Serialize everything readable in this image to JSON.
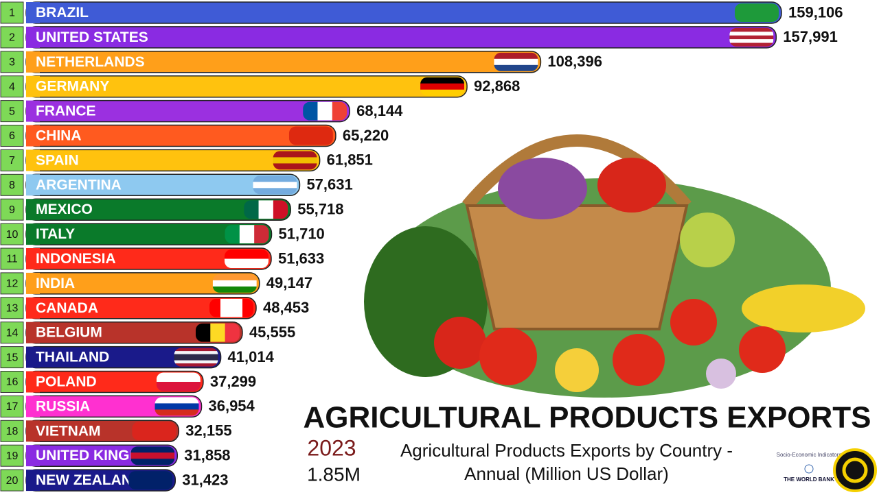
{
  "chart_data": {
    "type": "bar",
    "orientation": "horizontal",
    "title": "AGRICULTURAL PRODUCTS EXPORTS",
    "subtitle": "Agricultural Products Exports by Country - Annual (Million US Dollar)",
    "year": "2023",
    "total": "1.85M",
    "source": [
      "Socio-Economic Indicators",
      "THE WORLD BANK"
    ],
    "ranks": [
      1,
      2,
      3,
      4,
      5,
      6,
      7,
      8,
      9,
      10,
      11,
      12,
      13,
      14,
      15,
      16,
      17,
      18,
      19,
      20
    ],
    "categories": [
      "BRAZIL",
      "UNITED STATES",
      "NETHERLANDS",
      "GERMANY",
      "FRANCE",
      "CHINA",
      "SPAIN",
      "ARGENTINA",
      "MEXICO",
      "ITALY",
      "INDONESIA",
      "INDIA",
      "CANADA",
      "BELGIUM",
      "THAILAND",
      "POLAND",
      "RUSSIA",
      "VIETNAM",
      "UNITED KINGDOM",
      "NEW ZEALAND"
    ],
    "values": [
      159106,
      157991,
      108396,
      92868,
      68144,
      65220,
      61851,
      57631,
      55718,
      51710,
      51633,
      49147,
      48453,
      45555,
      41014,
      37299,
      36954,
      32155,
      31858,
      31423
    ],
    "value_labels": [
      "159,106",
      "157,991",
      "108,396",
      "92,868",
      "68,144",
      "65,220",
      "61,851",
      "57,631",
      "55,718",
      "51,710",
      "51,633",
      "49,147",
      "48,453",
      "45,555",
      "41,014",
      "37,299",
      "36,954",
      "32,155",
      "31,858",
      "31,423"
    ],
    "colors": [
      "#3f5bd6",
      "#8a2be2",
      "#ff9f1a",
      "#ffc20e",
      "#9b30e0",
      "#ff5a1f",
      "#ffc20e",
      "#8ec9f0",
      "#0a7a2a",
      "#0a7a2a",
      "#ff2a1a",
      "#ff9f1a",
      "#ff2a1a",
      "#b8332a",
      "#1a1a8a",
      "#ff2a1a",
      "#ff30d0",
      "#b8332a",
      "#8a2be2",
      "#1a1a8a"
    ]
  }
}
